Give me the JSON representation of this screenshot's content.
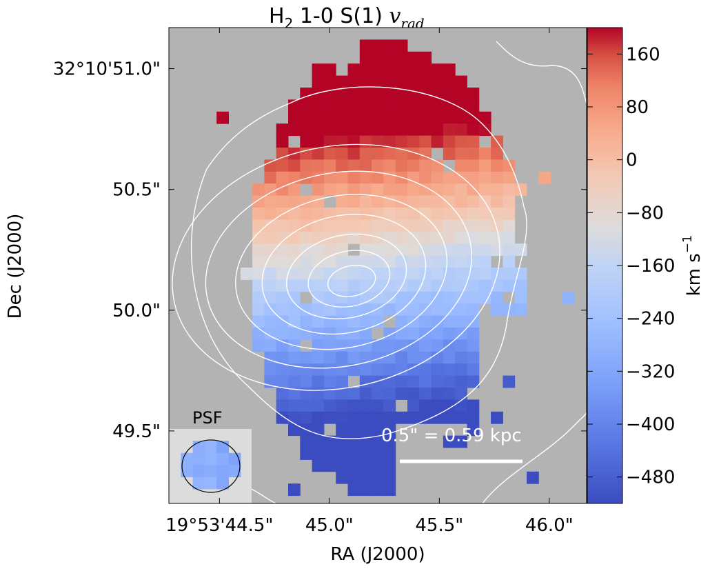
{
  "chart_data": {
    "type": "heatmap",
    "title_main": "H",
    "title_sub": "2",
    "title_rest": " 1-0 S(1) ",
    "title_var": "v",
    "title_var_sub": "rad",
    "xlabel": "RA (J2000)",
    "ylabel": "Dec (J2000)",
    "x_ticks": [
      {
        "label": "19°53'44.5\"",
        "value": 44.5
      },
      {
        "label": "45.0\"",
        "value": 45.0
      },
      {
        "label": "45.5\"",
        "value": 45.5
      },
      {
        "label": "46.0\"",
        "value": 46.0
      }
    ],
    "y_ticks": [
      {
        "label": "32°10'51.0\"",
        "value": 51.0
      },
      {
        "label": "50.5\"",
        "value": 50.5
      },
      {
        "label": "50.0\"",
        "value": 50.0
      },
      {
        "label": "49.5\"",
        "value": 49.5
      }
    ],
    "xlim": [
      44.27,
      46.17
    ],
    "ylim": [
      49.2,
      51.17
    ],
    "colorbar": {
      "label": "km s",
      "label_exp": "−1",
      "range": [
        -520,
        200
      ],
      "ticks": [
        160,
        80,
        0,
        -80,
        -160,
        -240,
        -320,
        -400,
        -480
      ],
      "tick_labels": [
        "160",
        "80",
        "0",
        "−80",
        "−160",
        "−240",
        "−320",
        "−400",
        "−480"
      ],
      "colormap": "coolwarm",
      "low_color": "#3b4cc0",
      "mid_color": "#dddddd",
      "high_color": "#b40426"
    },
    "background_color": "#b3b3b3",
    "contour_color": "#ffffff",
    "psf_label": "PSF",
    "scalebar_label": "0.5\" = 0.59 kpc",
    "field_model": {
      "center_ra": 45.12,
      "center_dec": 50.11,
      "velocity_gradient_per_arcsec": 660,
      "velocity_offset": -180
    }
  }
}
